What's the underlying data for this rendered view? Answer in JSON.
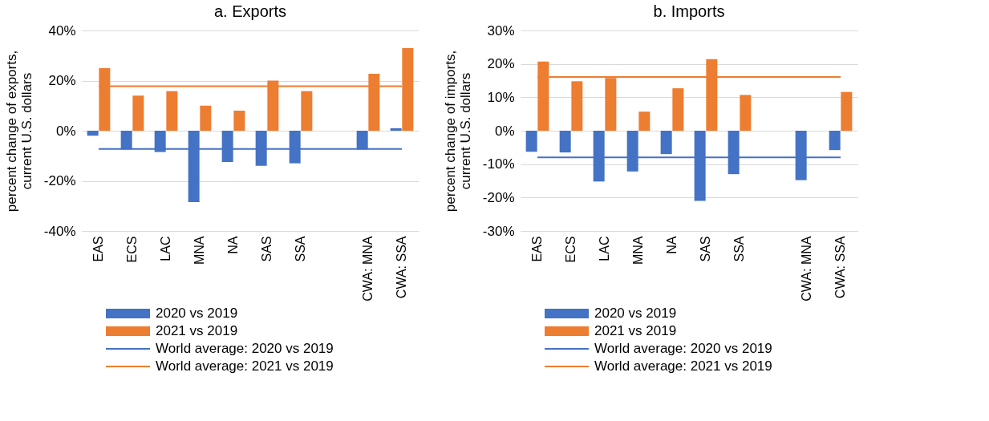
{
  "chart_data": [
    {
      "type": "bar",
      "title": "a.    Exports",
      "ylabel": "percent change of exports,\ncurrent U.S. dollars",
      "categories": [
        "EAS",
        "ECS",
        "LAC",
        "MNA",
        "NA",
        "SAS",
        "SSA",
        null,
        "CWA: MNA",
        "CWA: SSA"
      ],
      "series": [
        {
          "name": "2020 vs 2019",
          "color": "#4472c4",
          "values": [
            -2,
            -7.5,
            -8.5,
            -28.5,
            -12.5,
            -14,
            -13,
            null,
            -7.5,
            1
          ]
        },
        {
          "name": "2021 vs 2019",
          "color": "#ed7d31",
          "values": [
            25,
            14,
            15.8,
            10,
            8,
            20,
            15.8,
            null,
            22.7,
            33
          ]
        },
        {
          "name": "World average: 2020 vs 2019",
          "type": "line",
          "color": "#4472c4",
          "values": [
            -7.3,
            -7.3,
            -7.3,
            -7.3,
            -7.3,
            -7.3,
            -7.3,
            -7.3,
            -7.3,
            -7.3
          ]
        },
        {
          "name": "World average: 2021 vs 2019",
          "type": "line",
          "color": "#ed7d31",
          "values": [
            17.8,
            17.8,
            17.8,
            17.8,
            17.8,
            17.8,
            17.8,
            17.8,
            17.8,
            17.8
          ]
        }
      ],
      "ylim": [
        -40,
        40
      ],
      "yticks": [
        {
          "value": -40,
          "label": "-40%"
        },
        {
          "value": -20,
          "label": "-20%"
        },
        {
          "value": 0,
          "label": "0%"
        },
        {
          "value": 20,
          "label": "20%"
        },
        {
          "value": 40,
          "label": "40%"
        }
      ],
      "grid": "y",
      "legend": "bottom"
    },
    {
      "type": "bar",
      "title": "b.    Imports",
      "ylabel": "percent change of imports,\ncurrent U.S. dollars",
      "categories": [
        "EAS",
        "ECS",
        "LAC",
        "MNA",
        "NA",
        "SAS",
        "SSA",
        null,
        "CWA: MNA",
        "CWA: SSA"
      ],
      "series": [
        {
          "name": "2020 vs 2019",
          "color": "#4472c4",
          "values": [
            -6.3,
            -6.5,
            -15.2,
            -12.2,
            -7,
            -21,
            -13,
            null,
            -14.8,
            -5.8
          ]
        },
        {
          "name": "2021 vs 2019",
          "color": "#ed7d31",
          "values": [
            20.7,
            14.8,
            15.8,
            5.7,
            12.7,
            21.4,
            10.7,
            null,
            null,
            11.6
          ]
        },
        {
          "name": "World average: 2020 vs 2019",
          "type": "line",
          "color": "#4472c4",
          "values": [
            -8,
            -8,
            -8,
            -8,
            -8,
            -8,
            -8,
            -8,
            -8,
            -8
          ]
        },
        {
          "name": "World average: 2021 vs 2019",
          "type": "line",
          "color": "#ed7d31",
          "values": [
            16.1,
            16.1,
            16.1,
            16.1,
            16.1,
            16.1,
            16.1,
            16.1,
            16.1,
            16.1
          ]
        }
      ],
      "ylim": [
        -30,
        30
      ],
      "yticks": [
        {
          "value": -30,
          "label": "-30%"
        },
        {
          "value": -20,
          "label": "-20%"
        },
        {
          "value": -10,
          "label": "-10%"
        },
        {
          "value": 0,
          "label": "0%"
        },
        {
          "value": 10,
          "label": "10%"
        },
        {
          "value": 20,
          "label": "20%"
        },
        {
          "value": 30,
          "label": "30%"
        }
      ],
      "grid": "y",
      "legend": "bottom"
    }
  ]
}
